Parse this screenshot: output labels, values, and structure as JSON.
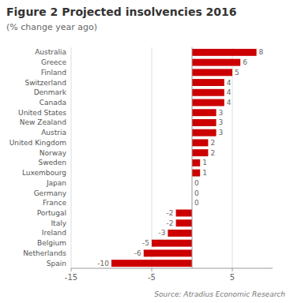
{
  "chart_data": {
    "type": "bar",
    "orientation": "horizontal",
    "title": "Figure 2 Projected insolvencies 2016",
    "subtitle": "(% change year ago)",
    "source": "Source: Atradius Economic Research",
    "categories": [
      "Australia",
      "Greece",
      "Finland",
      "Switzerland",
      "Denmark",
      "Canada",
      "United States",
      "New Zealand",
      "Austria",
      "United Kingdom",
      "Norway",
      "Sweden",
      "Luxembourg",
      "Japan",
      "Germany",
      "France",
      "Portugal",
      "Italy",
      "Ireland",
      "Belgium",
      "Netherlands",
      "Spain"
    ],
    "values": [
      8,
      6,
      5,
      4,
      4,
      4,
      3,
      3,
      3,
      2,
      2,
      1,
      1,
      0,
      0,
      0,
      -2,
      -2,
      -3,
      -5,
      -6,
      -10
    ],
    "color": "#cc0000",
    "xlim": [
      -15,
      10
    ],
    "xticks": [
      -15,
      -5,
      5
    ],
    "grid": true,
    "data_labels": true
  }
}
